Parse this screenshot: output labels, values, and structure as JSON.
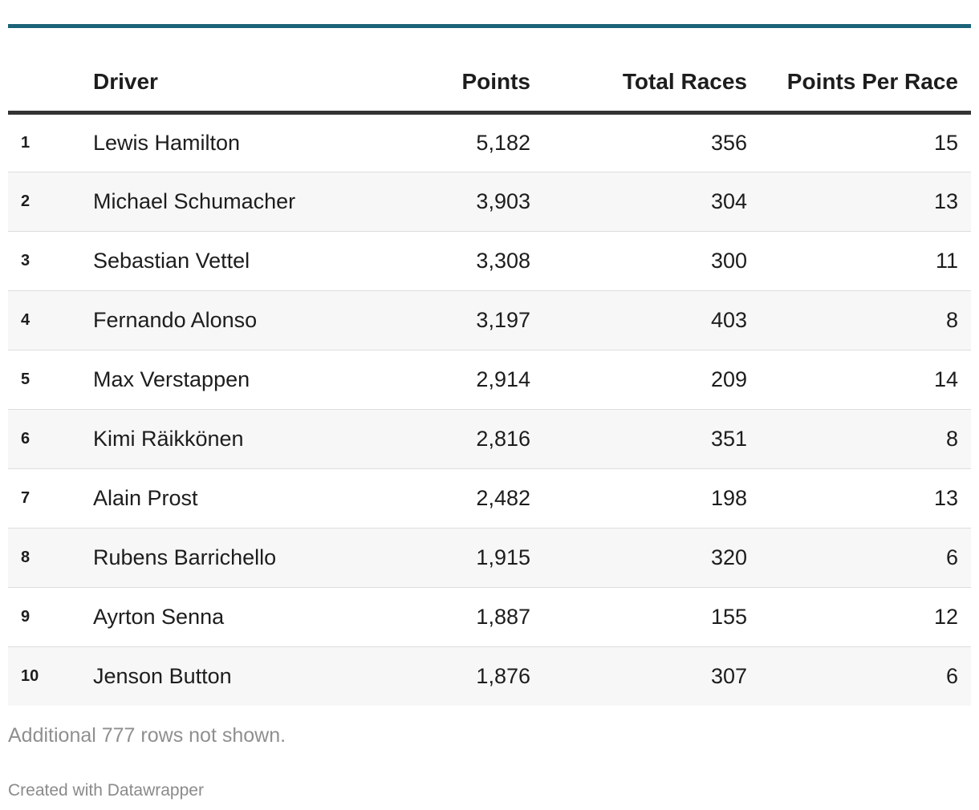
{
  "chart_data": {
    "type": "table",
    "columns": [
      "",
      "Driver",
      "Points",
      "Total Races",
      "Points Per Race"
    ],
    "rows": [
      {
        "rank": "1",
        "driver": "Lewis Hamilton",
        "points": "5,182",
        "races": "356",
        "ppr": "15"
      },
      {
        "rank": "2",
        "driver": "Michael Schumacher",
        "points": "3,903",
        "races": "304",
        "ppr": "13"
      },
      {
        "rank": "3",
        "driver": "Sebastian Vettel",
        "points": "3,308",
        "races": "300",
        "ppr": "11"
      },
      {
        "rank": "4",
        "driver": "Fernando Alonso",
        "points": "3,197",
        "races": "403",
        "ppr": "8"
      },
      {
        "rank": "5",
        "driver": "Max Verstappen",
        "points": "2,914",
        "races": "209",
        "ppr": "14"
      },
      {
        "rank": "6",
        "driver": "Kimi Räikkönen",
        "points": "2,816",
        "races": "351",
        "ppr": "8"
      },
      {
        "rank": "7",
        "driver": "Alain Prost",
        "points": "2,482",
        "races": "198",
        "ppr": "13"
      },
      {
        "rank": "8",
        "driver": "Rubens Barrichello",
        "points": "1,915",
        "races": "320",
        "ppr": "6"
      },
      {
        "rank": "9",
        "driver": "Ayrton Senna",
        "points": "1,887",
        "races": "155",
        "ppr": "12"
      },
      {
        "rank": "10",
        "driver": "Jenson Button",
        "points": "1,876",
        "races": "307",
        "ppr": "6"
      }
    ]
  },
  "notes": "Additional 777 rows not shown.",
  "credit": "Created with Datawrapper",
  "colors": {
    "top_rule": "#1b6379",
    "header_rule": "#333333",
    "zebra": "#f7f7f7",
    "muted_text": "#8f8f8f"
  }
}
